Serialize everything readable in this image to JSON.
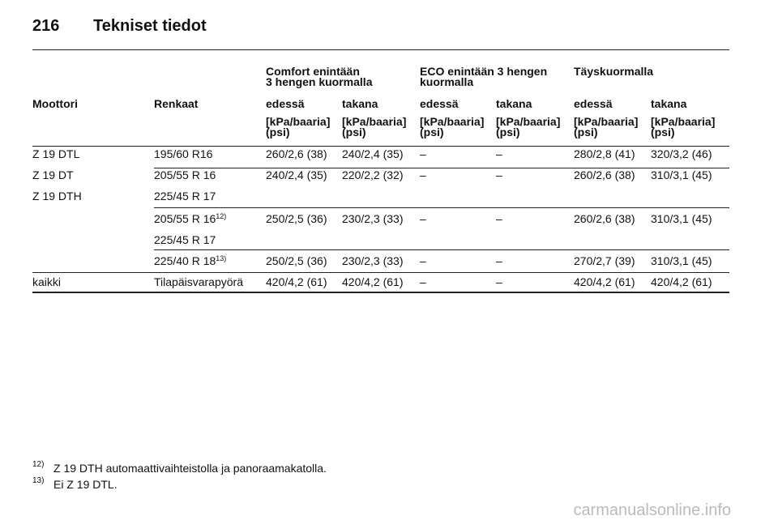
{
  "header": {
    "page": "216",
    "title": "Tekniset tiedot"
  },
  "table": {
    "group_headers": [
      [
        "Comfort enintään",
        "3 hengen kuormalla"
      ],
      [
        "ECO enintään 3 hengen",
        "kuormalla"
      ],
      [
        "Täyskuormalla"
      ]
    ],
    "columns": [
      "Moottori",
      "Renkaat",
      "edessä",
      "takana",
      "edessä",
      "takana",
      "edessä",
      "takana"
    ],
    "units": [
      [
        "[kPa/baaria]",
        "(psi)"
      ],
      [
        "[kPa/baaria]",
        "(psi)"
      ],
      [
        "[kPa/baaria]",
        "(psi)"
      ],
      [
        "[kPa/baaria]",
        "(psi)"
      ],
      [
        "[kPa/baaria]",
        "(psi)"
      ],
      [
        "[kPa/baaria]",
        "(psi)"
      ]
    ],
    "rows": [
      {
        "engines": [
          "Z 19 DTL",
          "Z 19 DT",
          "Z 19 DTH"
        ],
        "tires": [
          {
            "text": "195/60 R16"
          }
        ],
        "values": [
          "260/2,6 (38)",
          "240/2,4 (35)",
          "–",
          "–",
          "280/2,8 (41)",
          "320/3,2 (46)"
        ]
      },
      {
        "tires": [
          {
            "text": "205/55 R 16"
          },
          {
            "text": "225/45 R 17"
          }
        ],
        "values": [
          "240/2,4 (35)",
          "220/2,2 (32)",
          "–",
          "–",
          "260/2,6 (38)",
          "310/3,1 (45)"
        ]
      },
      {
        "tires": [
          {
            "text": "205/55 R 16",
            "note": "12)"
          },
          {
            "text": "225/45 R 17"
          }
        ],
        "values": [
          "250/2,5 (36)",
          "230/2,3 (33)",
          "–",
          "–",
          "260/2,6 (38)",
          "310/3,1 (45)"
        ]
      },
      {
        "tires": [
          {
            "text": "225/40 R 18",
            "note": "13)"
          }
        ],
        "values": [
          "250/2,5 (36)",
          "230/2,3 (33)",
          "–",
          "–",
          "270/2,7 (39)",
          "310/3,1 (45)"
        ]
      },
      {
        "engines": [
          "kaikki"
        ],
        "tires": [
          {
            "text": "Tilapäisvarapyörä"
          }
        ],
        "values": [
          "420/4,2 (61)",
          "420/4,2 (61)",
          "–",
          "–",
          "420/4,2 (61)",
          "420/4,2 (61)"
        ]
      }
    ]
  },
  "footnotes": [
    {
      "mark": "12)",
      "text": "Z 19 DTH automaattivaihteistolla ja panoraamakatolla."
    },
    {
      "mark": "13)",
      "text": "Ei Z 19 DTL."
    }
  ],
  "watermark": "carmanualsonline.info"
}
